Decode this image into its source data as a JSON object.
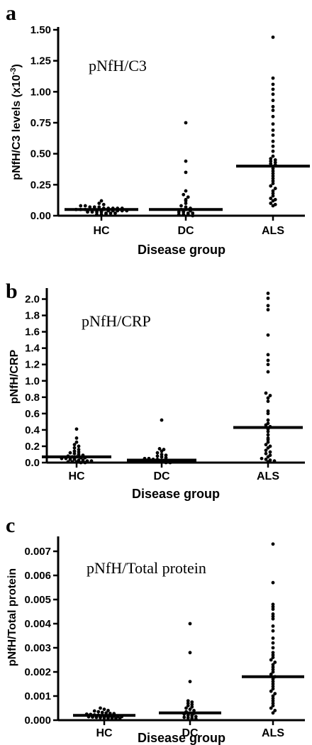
{
  "chart_data": [
    {
      "type": "scatter",
      "panel_label": "a",
      "title": "pNfH/C3",
      "ylabel": "pNfH/C3 levels (x10",
      "ylabel_exp": "-3",
      "ylabel_close": ")",
      "xlabel": "Disease group",
      "categories": [
        "HC",
        "DC",
        "ALS"
      ],
      "ylim": [
        0,
        1.5
      ],
      "yticks": [
        0,
        0.25,
        0.5,
        0.75,
        1.0,
        1.25,
        1.5
      ],
      "ytick_labels": [
        "0.00",
        "0.25",
        "0.50",
        "0.75",
        "1.00",
        "1.25",
        "1.50"
      ],
      "medians": [
        0.05,
        0.05,
        0.4
      ],
      "series": [
        {
          "category": "HC",
          "values": [
            0.12,
            0.1,
            0.09,
            0.08,
            0.08,
            0.07,
            0.07,
            0.07,
            0.06,
            0.06,
            0.06,
            0.06,
            0.06,
            0.05,
            0.05,
            0.05,
            0.05,
            0.05,
            0.05,
            0.05,
            0.04,
            0.04,
            0.04,
            0.04,
            0.04,
            0.03,
            0.03,
            0.03,
            0.03,
            0.02,
            0.02,
            0.02,
            0.01,
            0.01,
            0.01
          ]
        },
        {
          "category": "DC",
          "values": [
            0.75,
            0.44,
            0.35,
            0.2,
            0.17,
            0.15,
            0.13,
            0.12,
            0.1,
            0.08,
            0.07,
            0.06,
            0.05,
            0.05,
            0.04,
            0.03,
            0.03,
            0.02,
            0.02,
            0.01,
            0.01,
            0.01,
            0.0
          ]
        },
        {
          "category": "ALS",
          "values": [
            1.44,
            1.11,
            1.06,
            1.02,
            0.98,
            0.93,
            0.88,
            0.85,
            0.8,
            0.74,
            0.69,
            0.65,
            0.6,
            0.56,
            0.52,
            0.48,
            0.46,
            0.45,
            0.44,
            0.43,
            0.42,
            0.41,
            0.38,
            0.36,
            0.34,
            0.32,
            0.3,
            0.28,
            0.26,
            0.24,
            0.22,
            0.2,
            0.18,
            0.16,
            0.14,
            0.13,
            0.12,
            0.1,
            0.09,
            0.08
          ]
        }
      ]
    },
    {
      "type": "scatter",
      "panel_label": "b",
      "title": "pNfH/CRP",
      "ylabel": "pNfH/CRP",
      "ylabel_exp": "",
      "ylabel_close": "",
      "xlabel": "Disease group",
      "categories": [
        "HC",
        "DC",
        "ALS"
      ],
      "ylim": [
        0,
        2.1
      ],
      "yticks": [
        0,
        0.2,
        0.4,
        0.6,
        0.8,
        1.0,
        1.2,
        1.4,
        1.6,
        1.8,
        2.0
      ],
      "ytick_labels": [
        "0.0",
        "0.2",
        "0.4",
        "0.6",
        "0.8",
        "1.0",
        "1.2",
        "1.4",
        "1.6",
        "1.8",
        "2.0"
      ],
      "medians": [
        0.07,
        0.03,
        0.43
      ],
      "series": [
        {
          "category": "HC",
          "values": [
            0.41,
            0.3,
            0.25,
            0.22,
            0.2,
            0.18,
            0.16,
            0.14,
            0.13,
            0.12,
            0.11,
            0.1,
            0.09,
            0.08,
            0.07,
            0.07,
            0.06,
            0.06,
            0.05,
            0.05,
            0.04,
            0.04,
            0.03,
            0.03,
            0.02,
            0.02,
            0.01,
            0.01,
            0.01,
            0.0,
            0.0
          ]
        },
        {
          "category": "DC",
          "values": [
            0.52,
            0.17,
            0.16,
            0.14,
            0.12,
            0.1,
            0.09,
            0.08,
            0.07,
            0.06,
            0.05,
            0.05,
            0.04,
            0.04,
            0.03,
            0.03,
            0.02,
            0.02,
            0.02,
            0.01,
            0.01,
            0.01,
            0.0,
            0.0
          ]
        },
        {
          "category": "ALS",
          "values": [
            2.07,
            2.01,
            1.92,
            1.87,
            1.56,
            1.32,
            1.25,
            1.2,
            1.11,
            0.85,
            0.82,
            0.79,
            0.75,
            0.63,
            0.6,
            0.52,
            0.48,
            0.46,
            0.44,
            0.41,
            0.38,
            0.34,
            0.3,
            0.28,
            0.25,
            0.22,
            0.2,
            0.18,
            0.15,
            0.13,
            0.11,
            0.09,
            0.07,
            0.05,
            0.04,
            0.03,
            0.02,
            0.01
          ]
        }
      ]
    },
    {
      "type": "scatter",
      "panel_label": "c",
      "title": "pNfH/Total protein",
      "ylabel": "pNfH/Total protein",
      "ylabel_exp": "",
      "ylabel_close": "",
      "xlabel": "Disease group",
      "categories": [
        "HC",
        "DC",
        "ALS"
      ],
      "ylim": [
        0,
        0.0075
      ],
      "yticks": [
        0,
        0.001,
        0.002,
        0.003,
        0.004,
        0.005,
        0.006,
        0.007
      ],
      "ytick_labels": [
        "0.000",
        "0.001",
        "0.002",
        "0.003",
        "0.004",
        "0.005",
        "0.006",
        "0.007"
      ],
      "medians": [
        0.0002,
        0.0003,
        0.0018
      ],
      "series": [
        {
          "category": "HC",
          "values": [
            0.0005,
            0.00045,
            0.0004,
            0.00038,
            0.00035,
            0.00032,
            0.0003,
            0.00028,
            0.00027,
            0.00025,
            0.00024,
            0.00022,
            0.00021,
            0.0002,
            0.00019,
            0.00018,
            0.00017,
            0.00016,
            0.00015,
            0.00014,
            0.00013,
            0.00012,
            0.00011,
            0.0001,
            9e-05,
            8e-05,
            7e-05,
            6e-05
          ]
        },
        {
          "category": "DC",
          "values": [
            0.004,
            0.0028,
            0.0016,
            0.0008,
            0.00075,
            0.0007,
            0.00065,
            0.0006,
            0.00055,
            0.0005,
            0.00045,
            0.0004,
            0.00035,
            0.0003,
            0.00028,
            0.00025,
            0.0002,
            0.00018,
            0.00015,
            0.00012,
            0.0001,
            8e-05,
            5e-05
          ]
        },
        {
          "category": "ALS",
          "values": [
            0.0073,
            0.0057,
            0.0048,
            0.0047,
            0.0046,
            0.0044,
            0.0043,
            0.0042,
            0.0039,
            0.0037,
            0.0034,
            0.0032,
            0.003,
            0.0028,
            0.0027,
            0.0026,
            0.0025,
            0.0024,
            0.0023,
            0.0022,
            0.0021,
            0.002,
            0.0019,
            0.0018,
            0.0017,
            0.0016,
            0.0015,
            0.0014,
            0.0013,
            0.0012,
            0.0011,
            0.001,
            0.0009,
            0.0008,
            0.0007,
            0.0006,
            0.0005,
            0.0004,
            0.0003
          ]
        }
      ]
    }
  ]
}
